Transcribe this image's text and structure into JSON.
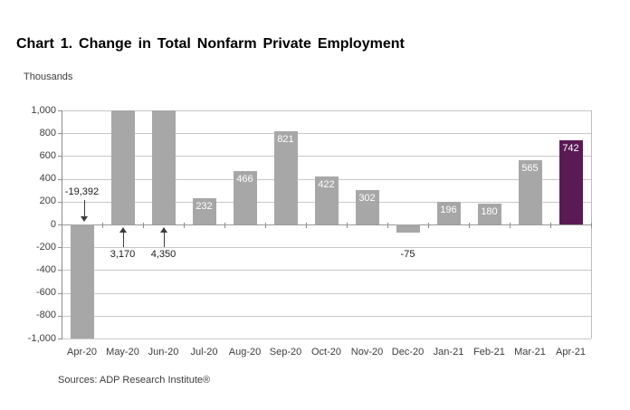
{
  "page": {
    "title": "Chart 1. Change in Total Nonfarm Private Employment",
    "units_label": "Thousands",
    "source_note": "Sources: ADP Research Institute®"
  },
  "colors": {
    "bar_default": "#a7a7a7",
    "bar_highlight": "#5a1a54",
    "gridline": "#c8c8c8",
    "zero_line": "#9a9a9a",
    "axis_line": "#8c8c8c",
    "tick": "#8c8c8c",
    "plot_border": "#bdbdbd",
    "bar_label_text": "#ffffff",
    "annotation_arrow": "#3c3c3c"
  },
  "chart_data": {
    "type": "bar",
    "title": "Chart 1. Change in Total Nonfarm Private Employment",
    "ylabel": "Thousands",
    "xlabel": "",
    "ylim": [
      -1000,
      1000
    ],
    "ytick_step": 200,
    "ytick_labels": [
      "1,000",
      "800",
      "600",
      "400",
      "200",
      "0",
      "-200",
      "-400",
      "-600",
      "-800",
      "-1,000"
    ],
    "grid": true,
    "legend_position": "none",
    "categories": [
      "Apr-20",
      "May-20",
      "Jun-20",
      "Jul-20",
      "Aug-20",
      "Sep-20",
      "Oct-20",
      "Nov-20",
      "Dec-20",
      "Jan-21",
      "Feb-21",
      "Mar-21",
      "Apr-21"
    ],
    "values": [
      -19392,
      3170,
      4350,
      232,
      466,
      821,
      422,
      302,
      -75,
      196,
      180,
      565,
      742
    ],
    "inside_bar_labels": [
      null,
      null,
      null,
      "232",
      "466",
      "821",
      "422",
      "302",
      null,
      "196",
      "180",
      "565",
      "742"
    ],
    "highlight_index": 12,
    "clipped_note": "May-20, Jun-20 and Apr-20 bars exceed the axis range and are clipped",
    "annotations": [
      {
        "text": "-19,392",
        "category": "Apr-20",
        "category_index": 0,
        "arrow": "down"
      },
      {
        "text": "3,170",
        "category": "May-20",
        "category_index": 1,
        "arrow": "up"
      },
      {
        "text": "4,350",
        "category": "Jun-20",
        "category_index": 2,
        "arrow": "up"
      },
      {
        "text": "-75",
        "category": "Dec-20",
        "category_index": 8,
        "arrow": "none"
      }
    ]
  }
}
